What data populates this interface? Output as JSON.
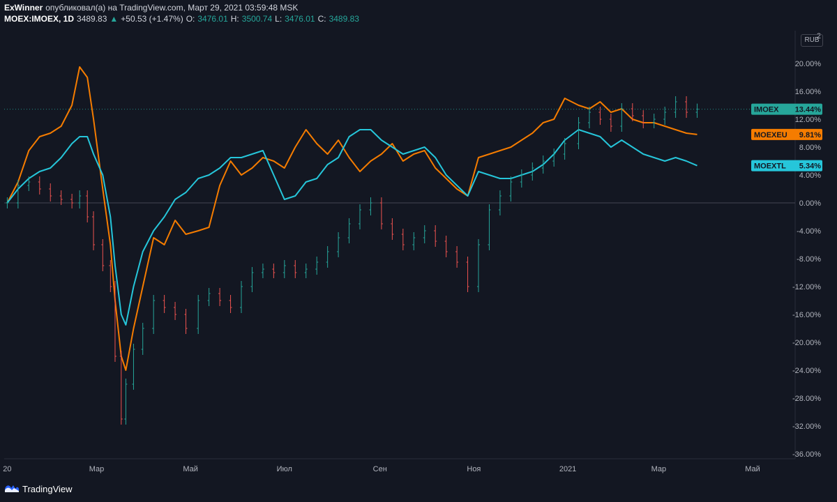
{
  "header": {
    "author": "ExWinner",
    "published_text": "опубликовал(а) на TradingView.com, Март 29, 2021 03:59:48 MSK",
    "symbol": "MOEX:IMOEX, 1D",
    "last": "3489.83",
    "change_arrow": "▲",
    "change": "+50.53 (+1.47%)",
    "o_label": "O:",
    "o_value": "3476.01",
    "h_label": "H:",
    "h_value": "3500.74",
    "l_label": "L:",
    "l_value": "3476.01",
    "c_label": "C:",
    "c_value": "3489.83"
  },
  "currency": "RUB",
  "footer": {
    "brand": "TradingView",
    "logo_icon": "tradingview-logo-icon"
  },
  "colors": {
    "background": "#131722",
    "up": "#26a69a",
    "down": "#ef5350",
    "moextl": "#26c6da",
    "moexeu": "#f57c00",
    "imoex_badge": "#26a69a",
    "moexeu_badge": "#f57c00",
    "moextl_badge": "#26c6da"
  },
  "chart_data": {
    "type": "line",
    "title": "",
    "y_unit": "%",
    "ylim": [
      -37,
      24
    ],
    "y_ticks": [
      "2",
      "20.00%",
      "16.00%",
      "12.00%",
      "8.00%",
      "4.00%",
      "0.00%",
      "-4.00%",
      "-8.00%",
      "-12.00%",
      "-16.00%",
      "-20.00%",
      "-24.00%",
      "-28.00%",
      "-32.00%",
      "-36.00%"
    ],
    "y_tick_values": [
      24,
      20,
      16,
      12,
      8,
      4,
      0,
      -4,
      -8,
      -12,
      -16,
      -20,
      -24,
      -28,
      -32,
      -36
    ],
    "x_ticks": [
      "20",
      "Мар",
      "Май",
      "Июл",
      "Сен",
      "Ноя",
      "2021",
      "Мар",
      "Май"
    ],
    "x_tick_dates": [
      "2020-01-03",
      "2020-03-01",
      "2020-05-01",
      "2020-07-01",
      "2020-09-01",
      "2020-11-01",
      "2021-01-01",
      "2021-03-01",
      "2021-05-01"
    ],
    "series": [
      {
        "name": "MOEXEU",
        "label": "9.81%",
        "style": "line",
        "x": [
          "2020-01-03",
          "2020-01-10",
          "2020-01-17",
          "2020-01-24",
          "2020-01-31",
          "2020-02-07",
          "2020-02-14",
          "2020-02-19",
          "2020-02-24",
          "2020-02-28",
          "2020-03-05",
          "2020-03-10",
          "2020-03-13",
          "2020-03-17",
          "2020-03-20",
          "2020-03-25",
          "2020-03-31",
          "2020-04-07",
          "2020-04-14",
          "2020-04-21",
          "2020-04-28",
          "2020-05-06",
          "2020-05-13",
          "2020-05-20",
          "2020-05-27",
          "2020-06-03",
          "2020-06-10",
          "2020-06-17",
          "2020-06-24",
          "2020-07-01",
          "2020-07-08",
          "2020-07-15",
          "2020-07-22",
          "2020-07-29",
          "2020-08-05",
          "2020-08-12",
          "2020-08-19",
          "2020-08-26",
          "2020-09-02",
          "2020-09-09",
          "2020-09-16",
          "2020-09-23",
          "2020-09-30",
          "2020-10-07",
          "2020-10-14",
          "2020-10-21",
          "2020-10-28",
          "2020-11-04",
          "2020-11-11",
          "2020-11-18",
          "2020-11-25",
          "2020-12-02",
          "2020-12-09",
          "2020-12-16",
          "2020-12-23",
          "2020-12-30",
          "2021-01-08",
          "2021-01-15",
          "2021-01-22",
          "2021-01-29",
          "2021-02-05",
          "2021-02-12",
          "2021-02-19",
          "2021-02-26",
          "2021-03-05",
          "2021-03-12",
          "2021-03-19",
          "2021-03-26"
        ],
        "y": [
          0.0,
          3.0,
          7.5,
          9.5,
          10.0,
          11.0,
          14.0,
          19.5,
          18.0,
          12.0,
          2.0,
          -6.0,
          -14.0,
          -22.0,
          -24.0,
          -18.0,
          -12.0,
          -5.0,
          -6.0,
          -2.5,
          -4.5,
          -4.0,
          -3.5,
          2.5,
          6.0,
          4.0,
          5.0,
          6.5,
          6.0,
          5.0,
          8.0,
          10.5,
          8.5,
          7.0,
          9.0,
          6.5,
          4.5,
          6.0,
          7.0,
          8.5,
          6.0,
          7.0,
          7.5,
          5.0,
          3.5,
          2.0,
          1.0,
          6.5,
          7.0,
          7.5,
          8.0,
          9.0,
          10.0,
          11.5,
          12.0,
          15.0,
          14.0,
          13.5,
          14.5,
          13.0,
          13.5,
          12.0,
          11.5,
          11.5,
          11.0,
          10.5,
          10.0,
          9.81
        ]
      },
      {
        "name": "MOEXTL",
        "label": "5.34%",
        "style": "line",
        "x": [
          "2020-01-03",
          "2020-01-10",
          "2020-01-17",
          "2020-01-24",
          "2020-01-31",
          "2020-02-07",
          "2020-02-14",
          "2020-02-19",
          "2020-02-24",
          "2020-02-28",
          "2020-03-05",
          "2020-03-10",
          "2020-03-13",
          "2020-03-17",
          "2020-03-20",
          "2020-03-25",
          "2020-03-31",
          "2020-04-07",
          "2020-04-14",
          "2020-04-21",
          "2020-04-28",
          "2020-05-06",
          "2020-05-13",
          "2020-05-20",
          "2020-05-27",
          "2020-06-03",
          "2020-06-10",
          "2020-06-17",
          "2020-06-24",
          "2020-07-01",
          "2020-07-08",
          "2020-07-15",
          "2020-07-22",
          "2020-07-29",
          "2020-08-05",
          "2020-08-12",
          "2020-08-19",
          "2020-08-26",
          "2020-09-02",
          "2020-09-09",
          "2020-09-16",
          "2020-09-23",
          "2020-09-30",
          "2020-10-07",
          "2020-10-14",
          "2020-10-21",
          "2020-10-28",
          "2020-11-04",
          "2020-11-11",
          "2020-11-18",
          "2020-11-25",
          "2020-12-02",
          "2020-12-09",
          "2020-12-16",
          "2020-12-23",
          "2020-12-30",
          "2021-01-08",
          "2021-01-15",
          "2021-01-22",
          "2021-01-29",
          "2021-02-05",
          "2021-02-12",
          "2021-02-19",
          "2021-02-26",
          "2021-03-05",
          "2021-03-12",
          "2021-03-19",
          "2021-03-26"
        ],
        "y": [
          0.0,
          2.0,
          3.5,
          4.5,
          5.0,
          6.5,
          8.5,
          9.5,
          9.5,
          7.0,
          4.0,
          -2.0,
          -9.0,
          -16.0,
          -17.5,
          -12.0,
          -7.0,
          -4.0,
          -2.0,
          0.5,
          1.5,
          3.5,
          4.0,
          5.0,
          6.5,
          6.5,
          7.0,
          7.5,
          4.0,
          0.5,
          1.0,
          3.0,
          3.5,
          5.5,
          6.5,
          9.5,
          10.5,
          10.5,
          9.0,
          8.0,
          7.0,
          7.5,
          8.0,
          6.5,
          4.0,
          2.5,
          1.0,
          4.5,
          4.0,
          3.5,
          3.5,
          4.0,
          4.5,
          5.5,
          7.0,
          9.0,
          10.5,
          10.0,
          9.5,
          8.0,
          9.0,
          8.0,
          7.0,
          6.5,
          6.0,
          6.5,
          6.0,
          5.34
        ]
      },
      {
        "name": "IMOEX",
        "label": "13.44%",
        "style": "ohlc",
        "x": [
          "2020-01-03",
          "2020-01-10",
          "2020-01-17",
          "2020-01-24",
          "2020-01-31",
          "2020-02-07",
          "2020-02-14",
          "2020-02-19",
          "2020-02-24",
          "2020-02-28",
          "2020-03-05",
          "2020-03-10",
          "2020-03-13",
          "2020-03-17",
          "2020-03-20",
          "2020-03-25",
          "2020-03-31",
          "2020-04-07",
          "2020-04-14",
          "2020-04-21",
          "2020-04-28",
          "2020-05-06",
          "2020-05-13",
          "2020-05-20",
          "2020-05-27",
          "2020-06-03",
          "2020-06-10",
          "2020-06-17",
          "2020-06-24",
          "2020-07-01",
          "2020-07-08",
          "2020-07-15",
          "2020-07-22",
          "2020-07-29",
          "2020-08-05",
          "2020-08-12",
          "2020-08-19",
          "2020-08-26",
          "2020-09-02",
          "2020-09-09",
          "2020-09-16",
          "2020-09-23",
          "2020-09-30",
          "2020-10-07",
          "2020-10-14",
          "2020-10-21",
          "2020-10-28",
          "2020-11-04",
          "2020-11-11",
          "2020-11-18",
          "2020-11-25",
          "2020-12-02",
          "2020-12-09",
          "2020-12-16",
          "2020-12-23",
          "2020-12-30",
          "2021-01-08",
          "2021-01-15",
          "2021-01-22",
          "2021-01-29",
          "2021-02-05",
          "2021-02-12",
          "2021-02-19",
          "2021-02-26",
          "2021-03-05",
          "2021-03-12",
          "2021-03-19",
          "2021-03-26"
        ],
        "y": [
          0.0,
          2.5,
          3.0,
          2.0,
          1.0,
          0.5,
          0.0,
          1.0,
          -2.0,
          -6.0,
          -9.0,
          -12.0,
          -22.0,
          -31.0,
          -26.0,
          -21.0,
          -18.0,
          -14.0,
          -15.0,
          -16.0,
          -18.0,
          -14.0,
          -13.0,
          -14.0,
          -15.0,
          -12.0,
          -10.0,
          -9.5,
          -10.0,
          -9.0,
          -10.0,
          -9.5,
          -8.5,
          -7.0,
          -5.0,
          -3.0,
          -1.0,
          0.0,
          -3.0,
          -4.5,
          -6.0,
          -5.0,
          -4.0,
          -5.5,
          -7.0,
          -8.5,
          -12.0,
          -6.0,
          -1.0,
          1.0,
          3.0,
          4.0,
          5.0,
          6.0,
          7.0,
          8.5,
          11.5,
          13.0,
          12.0,
          11.0,
          13.5,
          12.5,
          11.5,
          12.0,
          13.0,
          14.5,
          13.0,
          13.44
        ]
      }
    ]
  }
}
